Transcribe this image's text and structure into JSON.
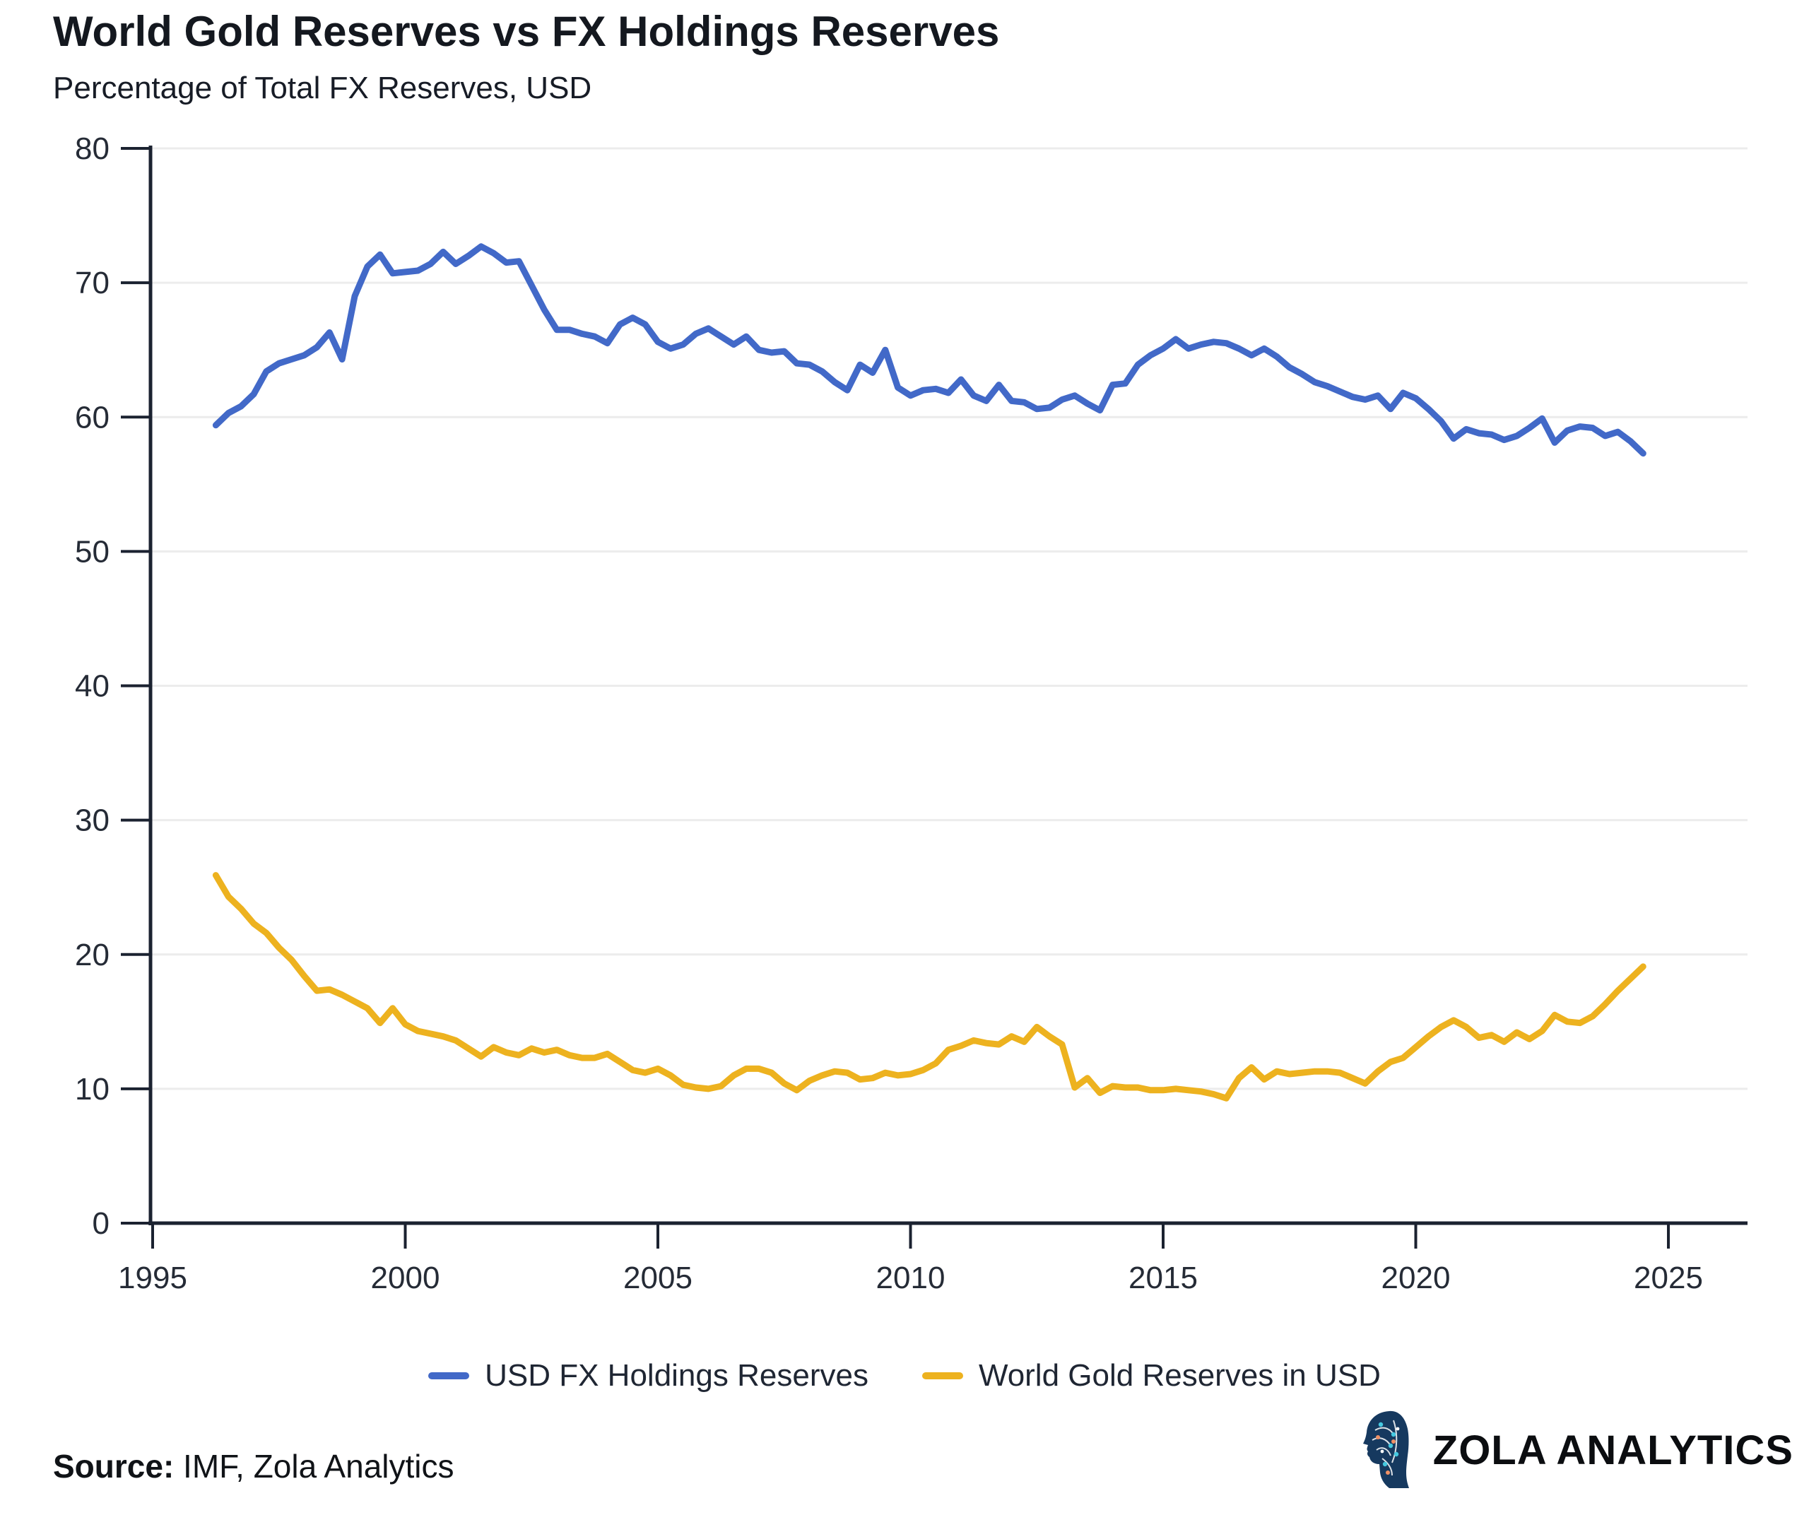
{
  "header": {
    "title": "World Gold Reserves vs FX Holdings Reserves",
    "subtitle": "Percentage of Total FX Reserves, USD"
  },
  "footer": {
    "source_label": "Source:",
    "source_text": " IMF, Zola Analytics"
  },
  "logo": {
    "text": "ZOLA ANALYTICS",
    "icon": "zola-head-icon",
    "icon_colors": {
      "base": "#16395f",
      "accent_teal": "#45c8e0",
      "accent_orange": "#ef9166",
      "trace": "#ffffff"
    }
  },
  "chart_data": {
    "type": "line",
    "title": "World Gold Reserves vs FX Holdings Reserves",
    "subtitle": "Percentage of Total FX Reserves, USD",
    "xlabel": "",
    "ylabel": "",
    "xlim": [
      1994.9,
      2026.3
    ],
    "ylim": [
      0,
      80
    ],
    "x_ticks": [
      1995,
      2000,
      2005,
      2010,
      2015,
      2020,
      2025
    ],
    "y_ticks": [
      0,
      10,
      20,
      30,
      40,
      50,
      60,
      70,
      80
    ],
    "grid": "horizontal",
    "legend_position": "bottom",
    "x_start": 1996.25,
    "x_step": 0.25,
    "series": [
      {
        "name": "USD FX Holdings Reserves",
        "color": "#4269C8",
        "values": [
          59.4,
          60.3,
          60.8,
          61.7,
          63.4,
          64.0,
          64.3,
          64.6,
          65.2,
          66.3,
          64.3,
          69.0,
          71.2,
          72.1,
          70.7,
          70.8,
          70.9,
          71.4,
          72.3,
          71.4,
          72.0,
          72.7,
          72.2,
          71.5,
          71.6,
          69.8,
          68.0,
          66.5,
          66.5,
          66.2,
          66.0,
          65.5,
          66.9,
          67.4,
          66.9,
          65.6,
          65.1,
          65.4,
          66.2,
          66.6,
          66.0,
          65.4,
          66.0,
          65.0,
          64.8,
          64.9,
          64.0,
          63.9,
          63.4,
          62.6,
          62.0,
          63.9,
          63.3,
          65.0,
          62.2,
          61.6,
          62.0,
          62.1,
          61.8,
          62.8,
          61.6,
          61.2,
          62.4,
          61.2,
          61.1,
          60.6,
          60.7,
          61.3,
          61.6,
          61.0,
          60.5,
          62.4,
          62.5,
          63.9,
          64.6,
          65.1,
          65.8,
          65.1,
          65.4,
          65.6,
          65.5,
          65.1,
          64.6,
          65.1,
          64.5,
          63.7,
          63.2,
          62.6,
          62.3,
          61.9,
          61.5,
          61.3,
          61.6,
          60.6,
          61.8,
          61.4,
          60.6,
          59.7,
          58.4,
          59.1,
          58.8,
          58.7,
          58.3,
          58.6,
          59.2,
          59.9,
          58.1,
          59.0,
          59.3,
          59.2,
          58.6,
          58.9,
          58.2,
          57.3
        ]
      },
      {
        "name": "World Gold Reserves in USD",
        "color": "#EDB21F",
        "values": [
          25.9,
          24.3,
          23.4,
          22.3,
          21.6,
          20.5,
          19.6,
          18.4,
          17.3,
          17.4,
          17.0,
          16.5,
          16.0,
          14.9,
          16.0,
          14.8,
          14.3,
          14.1,
          13.9,
          13.6,
          13.0,
          12.4,
          13.1,
          12.7,
          12.5,
          13.0,
          12.7,
          12.9,
          12.5,
          12.3,
          12.3,
          12.6,
          12.0,
          11.4,
          11.2,
          11.5,
          11.0,
          10.3,
          10.1,
          10.0,
          10.2,
          11.0,
          11.5,
          11.5,
          11.2,
          10.4,
          9.9,
          10.6,
          11.0,
          11.3,
          11.2,
          10.7,
          10.8,
          11.2,
          11.0,
          11.1,
          11.4,
          11.9,
          12.9,
          13.2,
          13.6,
          13.4,
          13.3,
          13.9,
          13.5,
          14.6,
          13.9,
          13.3,
          10.1,
          10.8,
          9.7,
          10.2,
          10.1,
          10.1,
          9.9,
          9.9,
          10.0,
          9.9,
          9.8,
          9.6,
          9.3,
          10.8,
          11.6,
          10.7,
          11.3,
          11.1,
          11.2,
          11.3,
          11.3,
          11.2,
          10.8,
          10.4,
          11.3,
          12.0,
          12.3,
          13.1,
          13.9,
          14.6,
          15.1,
          14.6,
          13.8,
          14.0,
          13.5,
          14.2,
          13.7,
          14.3,
          15.5,
          15.0,
          14.9,
          15.4,
          16.3,
          17.3,
          18.2,
          19.1
        ]
      }
    ]
  }
}
